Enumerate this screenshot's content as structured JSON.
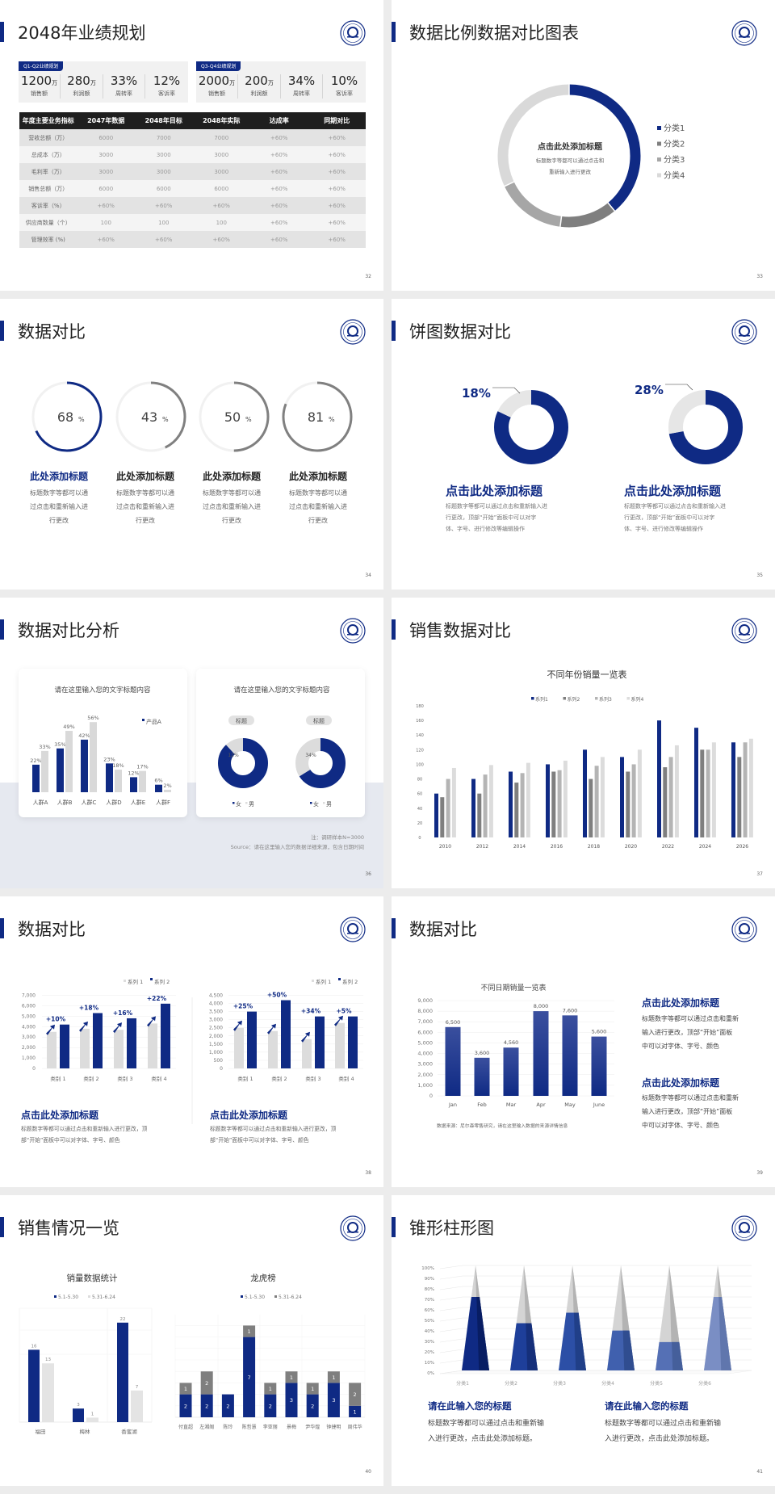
{
  "colors": {
    "brand": "#0f2a84",
    "dark_gray": "#7f7f7f",
    "mid_gray": "#a6a6a6",
    "light_gray": "#d9d9d9"
  },
  "logo_icon": "university-seal-icon",
  "s32": {
    "title": "2048年业绩规划",
    "page": "32",
    "kpi": [
      {
        "tag": "Q1-Q2业绩规划",
        "items": [
          {
            "value": "1200",
            "unit": "万",
            "label": "销售额"
          },
          {
            "value": "280",
            "unit": "万",
            "label": "利润额"
          },
          {
            "value": "33%",
            "unit": "",
            "label": "周转率"
          },
          {
            "value": "12%",
            "unit": "",
            "label": "客诉率"
          }
        ]
      },
      {
        "tag": "Q3-Q4业绩规划",
        "items": [
          {
            "value": "2000",
            "unit": "万",
            "label": "销售额"
          },
          {
            "value": "200",
            "unit": "万",
            "label": "利润额"
          },
          {
            "value": "34%",
            "unit": "",
            "label": "周转率"
          },
          {
            "value": "10%",
            "unit": "",
            "label": "客诉率"
          }
        ]
      }
    ],
    "table": {
      "headers": [
        "年度主要业务指标",
        "2047年数据",
        "2048年目标",
        "2048年实际",
        "达成率",
        "同期对比"
      ],
      "rows": [
        [
          "营收总额（万）",
          "6000",
          "7000",
          "7000",
          "+60%",
          "+60%"
        ],
        [
          "总成本（万）",
          "3000",
          "3000",
          "3000",
          "+60%",
          "+60%"
        ],
        [
          "毛利率（万）",
          "3000",
          "3000",
          "3000",
          "+60%",
          "+60%"
        ],
        [
          "销售总额（万）",
          "6000",
          "6000",
          "6000",
          "+60%",
          "+60%"
        ],
        [
          "客诉率（%）",
          "+60%",
          "+60%",
          "+60%",
          "+60%",
          "+60%"
        ],
        [
          "供应商数量（个）",
          "100",
          "100",
          "100",
          "+60%",
          "+60%"
        ],
        [
          "管理效率 (%)",
          "+60%",
          "+60%",
          "+60%",
          "+60%",
          "+60%"
        ]
      ]
    }
  },
  "s33": {
    "title": "数据比例数据对比图表",
    "page": "33",
    "center_title": "点击此处添加标题",
    "center_desc": [
      "标题数字等都可以通过点击和",
      "重新输入进行更改"
    ],
    "chart_data": {
      "type": "pie",
      "labels": [
        "分类1",
        "分类2",
        "分类3",
        "分类4"
      ],
      "values": [
        39,
        13,
        16,
        32
      ],
      "colors": [
        "#0f2a84",
        "#7f7f7f",
        "#a6a6a6",
        "#d9d9d9"
      ]
    }
  },
  "s34": {
    "title": "数据对比",
    "page": "34",
    "items": [
      {
        "value": "68",
        "unit": "%",
        "color": "#0f2a84",
        "heading": "此处添加标题",
        "desc": [
          "标题数字等都可以通",
          "过点击和重新输入进",
          "行更改"
        ]
      },
      {
        "value": "43",
        "unit": "%",
        "color": "#808080",
        "heading": "此处添加标题",
        "desc": [
          "标题数字等都可以通",
          "过点击和重新输入进",
          "行更改"
        ]
      },
      {
        "value": "50",
        "unit": "%",
        "color": "#808080",
        "heading": "此处添加标题",
        "desc": [
          "标题数字等都可以通",
          "过点击和重新输入进",
          "行更改"
        ]
      },
      {
        "value": "81",
        "unit": "%",
        "color": "#808080",
        "heading": "此处添加标题",
        "desc": [
          "标题数字等都可以通",
          "过点击和重新输入进",
          "行更改"
        ]
      }
    ]
  },
  "s35": {
    "title": "饼图数据对比",
    "page": "35",
    "items": [
      {
        "label": "18%",
        "value": 18,
        "heading": "点击此处添加标题",
        "desc": [
          "标题数字等都可以通过点击和重新输入进",
          "行更改，顶部“开始”面板中可以对字",
          "体、字号、进行修改等编辑操作"
        ]
      },
      {
        "label": "28%",
        "value": 28,
        "heading": "点击此处添加标题",
        "desc": [
          "标题数字等都可以通过点击和重新输入进",
          "行更改，顶部“开始”面板中可以对字",
          "体、字号、进行修改等编辑操作"
        ]
      }
    ]
  },
  "s36": {
    "title": "数据对比分析",
    "page": "36",
    "card1": {
      "title": "请在这里输入您的文字标题内容",
      "legend": "产品A",
      "categories": [
        "人群A",
        "人群B",
        "人群C",
        "人群D",
        "人群E",
        "人群F"
      ],
      "series": [
        [
          "22%",
          "35%",
          "42%",
          "23%",
          "12%",
          "6%"
        ],
        [
          "33%",
          "49%",
          "56%",
          "18%",
          "17%",
          "2%"
        ]
      ]
    },
    "card2": {
      "title": "请在这里输入您的文字标题内容",
      "legend": [
        "女",
        "男"
      ],
      "donuts": [
        {
          "tag": "标题",
          "female": 88,
          "male": 12,
          "label": "12%"
        },
        {
          "tag": "标题",
          "female": 66,
          "male": 34,
          "label": "34%"
        }
      ]
    },
    "note": "注：调研样本N=3000",
    "source": "Source：请在这里输入您的数据详细来源，包含日期时间"
  },
  "s37": {
    "title": "销售数据对比",
    "page": "37",
    "chart_data": {
      "type": "bar",
      "title": "不同年份销量一览表",
      "ylim": [
        0,
        180
      ],
      "yticks": [
        "0",
        "20",
        "40",
        "60",
        "80",
        "100",
        "120",
        "140",
        "160",
        "180"
      ],
      "categories": [
        "2010",
        "2012",
        "2014",
        "2016",
        "2018",
        "2020",
        "2022",
        "2024",
        "2026"
      ],
      "series": [
        {
          "name": "系列1",
          "color": "#0f2a84",
          "values": [
            60,
            80,
            90,
            100,
            120,
            110,
            160,
            150,
            130
          ]
        },
        {
          "name": "系列2",
          "color": "#7f7f7f",
          "values": [
            55,
            60,
            75,
            90,
            80,
            90,
            96,
            120,
            110
          ]
        },
        {
          "name": "系列3",
          "color": "#b4b4b4",
          "values": [
            80,
            86,
            88,
            92,
            98,
            100,
            110,
            120,
            130
          ]
        },
        {
          "name": "系列4",
          "color": "#dcdcdc",
          "values": [
            95,
            99,
            102,
            105,
            110,
            120,
            126,
            130,
            135
          ]
        }
      ]
    }
  },
  "s38": {
    "title": "数据对比",
    "page": "38",
    "charts": [
      {
        "type": "bar",
        "legend": [
          "系列 1",
          "系列 2"
        ],
        "ylim": [
          0,
          7000
        ],
        "yticks": [
          "0",
          "1,000",
          "2,000",
          "3,000",
          "4,000",
          "5,000",
          "6,000",
          "7,000"
        ],
        "categories": [
          "类别 1",
          "类别 2",
          "类别 3",
          "类别 4"
        ],
        "s1": [
          3500,
          3800,
          3700,
          4300
        ],
        "s2": [
          4200,
          5300,
          4800,
          6200
        ],
        "growth": [
          "+10%",
          "+18%",
          "+16%",
          "+22%"
        ]
      },
      {
        "type": "bar",
        "legend": [
          "系列 1",
          "系列 2"
        ],
        "ylim": [
          0,
          4500
        ],
        "yticks": [
          "0",
          "500",
          "1,000",
          "1,500",
          "2,000",
          "2,500",
          "3,000",
          "3,500",
          "4,000",
          "4,500"
        ],
        "categories": [
          "类别 1",
          "类别 2",
          "类别 3",
          "类别 4"
        ],
        "s1": [
          2500,
          2300,
          1800,
          2800
        ],
        "s2": [
          3500,
          4200,
          3200,
          3200
        ],
        "growth": [
          "+25%",
          "+50%",
          "+34%",
          "+5%"
        ]
      }
    ],
    "texts": [
      {
        "heading": "点击此处添加标题",
        "desc": [
          "标题数字等都可以通过点击和重新输入进行更改，顶",
          "部“开始”面板中可以对字体、字号、颜色"
        ]
      },
      {
        "heading": "点击此处添加标题",
        "desc": [
          "标题数字等都可以通过点击和重新输入进行更改，顶",
          "部“开始”面板中可以对字体、字号、颜色"
        ]
      }
    ]
  },
  "s39": {
    "title": "数据对比",
    "page": "39",
    "chart_data": {
      "type": "bar",
      "title": "不同日期销量一览表",
      "ylim": [
        0,
        9000
      ],
      "yticks": [
        "0",
        "1,000",
        "2,000",
        "3,000",
        "4,000",
        "5,000",
        "6,000",
        "7,000",
        "8,000",
        "9,000"
      ],
      "categories": [
        "Jan",
        "Feb",
        "Mar",
        "Apr",
        "May",
        "June"
      ],
      "values": [
        6500,
        3600,
        4560,
        8000,
        7600,
        5600
      ],
      "labels": [
        "6,500",
        "3,600",
        "4,560",
        "8,000",
        "7,600",
        "5,600"
      ]
    },
    "source": "数据来源：尼尔森零售研究，请在这里输入数据的来源详情信息",
    "texts": [
      {
        "heading": "点击此处添加标题",
        "desc": [
          "标题数字等都可以通过点击和重新",
          "输入进行更改，顶部“开始”面板",
          "中可以对字体、字号、颜色"
        ]
      },
      {
        "heading": "点击此处添加标题",
        "desc": [
          "标题数字等都可以通过点击和重新",
          "输入进行更改，顶部“开始”面板",
          "中可以对字体、字号、颜色"
        ]
      }
    ]
  },
  "s40": {
    "title": "销售情况一览",
    "page": "40",
    "left": {
      "type": "bar",
      "title": "销量数据统计",
      "legend": [
        "5.1-5.30",
        "5.31-6.24"
      ],
      "categories": [
        "福田",
        "梅林",
        "香蜜湖"
      ],
      "s1": [
        16,
        3,
        22
      ],
      "s2": [
        13,
        1,
        7
      ]
    },
    "right": {
      "type": "stacked-bar",
      "title": "龙虎榜",
      "legend": [
        "5.1-5.30",
        "5.31-6.24"
      ],
      "categories": [
        "付直超",
        "左湘阁",
        "陈玲",
        "陈哲慧",
        "李亚丽",
        "景梅",
        "尹华煌",
        "钟捷明",
        "周伟华"
      ],
      "s1": [
        2,
        2,
        2,
        7,
        2,
        3,
        2,
        3,
        1
      ],
      "s2": [
        1,
        2,
        0,
        1,
        1,
        1,
        1,
        1,
        2
      ]
    }
  },
  "s41": {
    "title": "锥形柱形图",
    "page": "41",
    "chart_data": {
      "type": "cone-bar",
      "ylim": [
        0,
        100
      ],
      "yticks": [
        "0%",
        "10%",
        "20%",
        "30%",
        "40%",
        "50%",
        "60%",
        "70%",
        "80%",
        "90%",
        "100%"
      ],
      "categories": [
        "分类1",
        "分类2",
        "分类3",
        "分类4",
        "分类5",
        "分类6"
      ],
      "values": [
        70,
        45,
        55,
        38,
        27,
        70
      ]
    },
    "texts": [
      {
        "heading": "请在此输入您的标题",
        "desc": [
          "标题数字等都可以通过点击和重新输",
          "入进行更改，点击此处添加标题。"
        ]
      },
      {
        "heading": "请在此输入您的标题",
        "desc": [
          "标题数字等都可以通过点击和重新输",
          "入进行更改，点击此处添加标题。"
        ]
      }
    ]
  }
}
